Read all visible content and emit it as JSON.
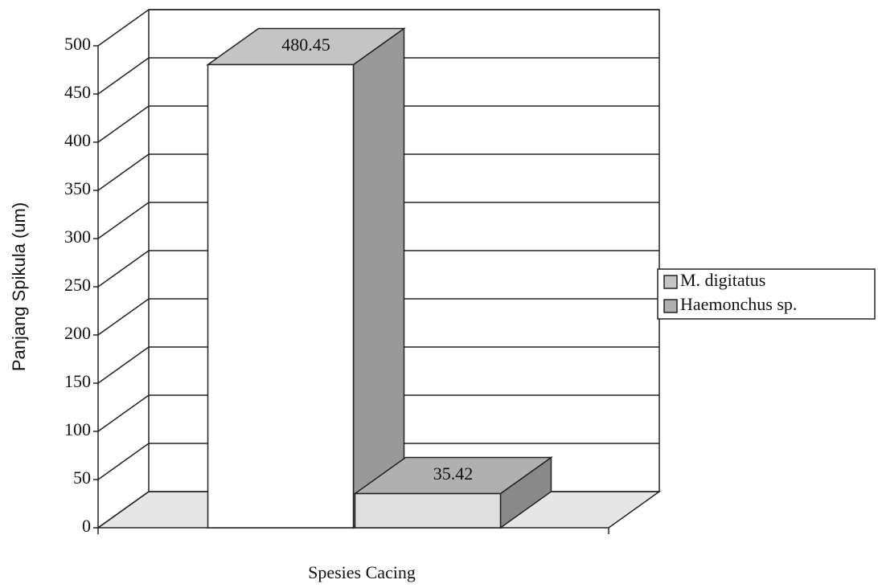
{
  "chart_data": {
    "type": "bar3d",
    "categories": [
      null
    ],
    "series": [
      {
        "name": "M. digitatus",
        "color": "#c4c4c4",
        "values": [
          480.45
        ]
      },
      {
        "name": "Haemonchus sp.",
        "color": "#b0b0b0",
        "values": [
          35.42
        ]
      }
    ],
    "ylabel": "Panjang Spikula (um)",
    "xlabel": "Spesies Cacing",
    "ylim": [
      0,
      500
    ],
    "yticks": [
      0,
      50,
      100,
      150,
      200,
      250,
      300,
      350,
      400,
      450,
      500
    ],
    "grid": true,
    "legend": "right"
  }
}
